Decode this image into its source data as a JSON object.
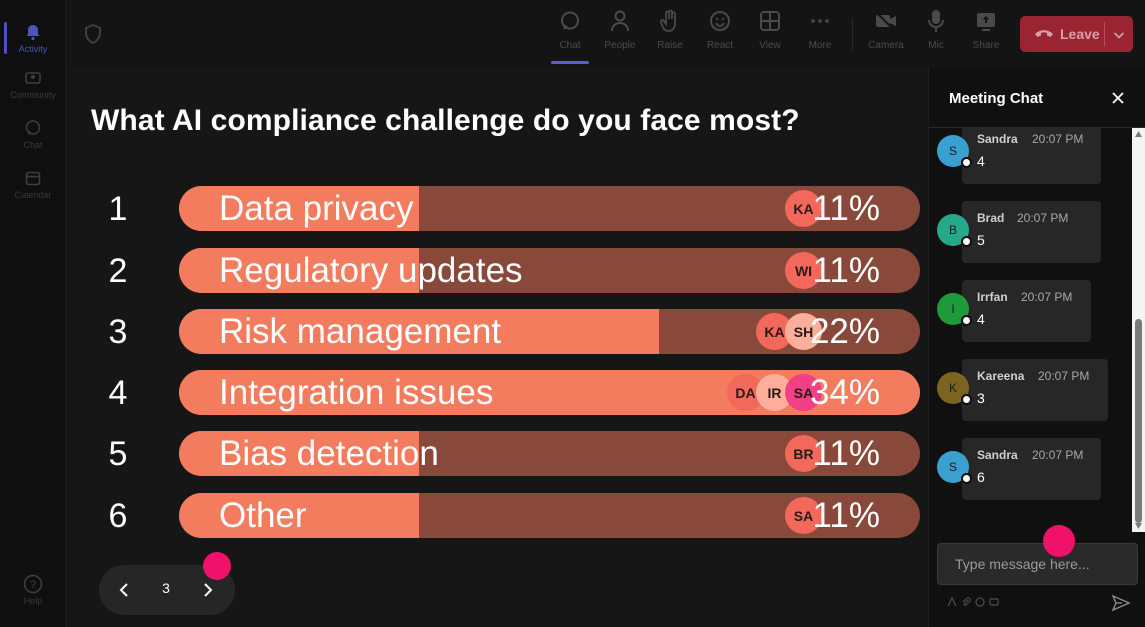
{
  "rail": {
    "items": [
      {
        "label": "Activity",
        "icon": "bell-icon",
        "active": true
      },
      {
        "label": "Community",
        "icon": "community-icon",
        "active": false
      },
      {
        "label": "Chat",
        "icon": "chat-icon",
        "active": false
      },
      {
        "label": "Calendar",
        "icon": "calendar-icon",
        "active": false
      }
    ],
    "help_label": "Help"
  },
  "toolbar": {
    "chat_label": "Chat",
    "people_label": "People",
    "raise_label": "Raise",
    "react_label": "React",
    "view_label": "View",
    "more_label": "More",
    "camera_label": "Camera",
    "mic_label": "Mic",
    "share_label": "Share",
    "leave_label": "Leave"
  },
  "poll": {
    "question": "What AI compliance challenge do you face most?",
    "options": [
      {
        "num": "1",
        "label": "Data privacy",
        "pct": "11%",
        "fraction": 0.11,
        "voters": [
          {
            "initials": "KA",
            "color": "#f2685a"
          }
        ]
      },
      {
        "num": "2",
        "label": "Regulatory updates",
        "pct": "11%",
        "fraction": 0.11,
        "voters": [
          {
            "initials": "WI",
            "color": "#f2685a"
          }
        ]
      },
      {
        "num": "3",
        "label": "Risk management",
        "pct": "22%",
        "fraction": 0.22,
        "voters": [
          {
            "initials": "KA",
            "color": "#f2685a"
          },
          {
            "initials": "SH",
            "color": "#fcae9a"
          }
        ]
      },
      {
        "num": "4",
        "label": "Integration issues",
        "pct": "34%",
        "fraction": 0.34,
        "voters": [
          {
            "initials": "DA",
            "color": "#f2685a"
          },
          {
            "initials": "IR",
            "color": "#fcae9a"
          },
          {
            "initials": "SA",
            "color": "#f23f86"
          }
        ]
      },
      {
        "num": "5",
        "label": "Bias detection",
        "pct": "11%",
        "fraction": 0.11,
        "voters": [
          {
            "initials": "BR",
            "color": "#f2685a"
          }
        ]
      },
      {
        "num": "6",
        "label": "Other",
        "pct": "11%",
        "fraction": 0.11,
        "voters": [
          {
            "initials": "SA",
            "color": "#f2685a"
          }
        ]
      }
    ]
  },
  "pager": {
    "page": "3"
  },
  "chat": {
    "title": "Meeting Chat",
    "input_placeholder": "Type message here...",
    "messages": [
      {
        "initial": "S",
        "name": "Sandra",
        "time": "20:07 PM",
        "text": "4",
        "color": "#3aa0d0"
      },
      {
        "initial": "B",
        "name": "Brad",
        "time": "20:07 PM",
        "text": "5",
        "color": "#26a98a"
      },
      {
        "initial": "I",
        "name": "Irrfan",
        "time": "20:07 PM",
        "text": "4",
        "color": "#1f9a3a"
      },
      {
        "initial": "K",
        "name": "Kareena",
        "time": "20:07 PM",
        "text": "3",
        "color": "#7a6420"
      },
      {
        "initial": "S",
        "name": "Sandra",
        "time": "20:07 PM",
        "text": "6",
        "color": "#3aa0d0"
      }
    ]
  },
  "colors": {
    "bar_fill": "#f47c5e",
    "bar_track": "#89493a",
    "accent": "#5b5fc7",
    "leave": "#9b2432",
    "cursor": "#f0116a"
  }
}
